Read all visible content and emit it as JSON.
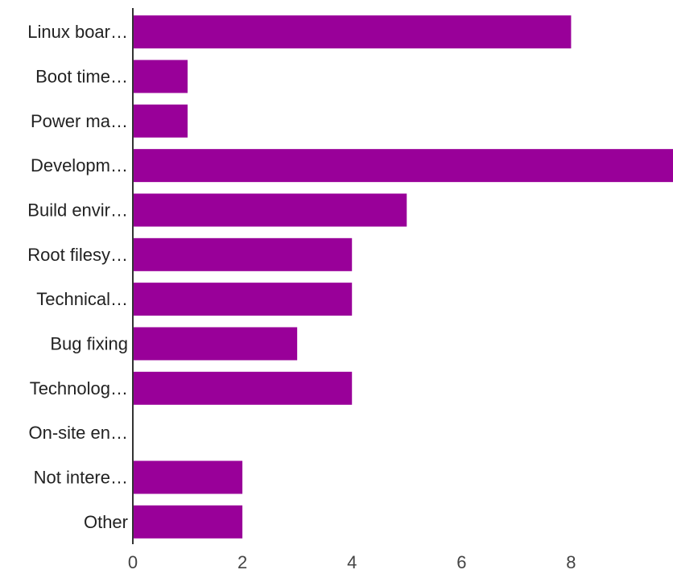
{
  "chart_data": {
    "type": "bar",
    "orientation": "horizontal",
    "categories": [
      "Linux boar…",
      "Boot time…",
      "Power ma…",
      "Developm…",
      "Build envir…",
      "Root filesy…",
      "Technical…",
      "Bug fixing",
      "Technolog…",
      "On-site en…",
      "Not intere…",
      "Other"
    ],
    "values": [
      8,
      1,
      1,
      10,
      5,
      4,
      4,
      3,
      4,
      0,
      2,
      2
    ],
    "xticks": [
      "0",
      "2",
      "4",
      "6",
      "8"
    ],
    "xlim": [
      0,
      9.86
    ],
    "title": "",
    "xlabel": "",
    "ylabel": "",
    "grid": false,
    "bar_color": "#990099"
  }
}
